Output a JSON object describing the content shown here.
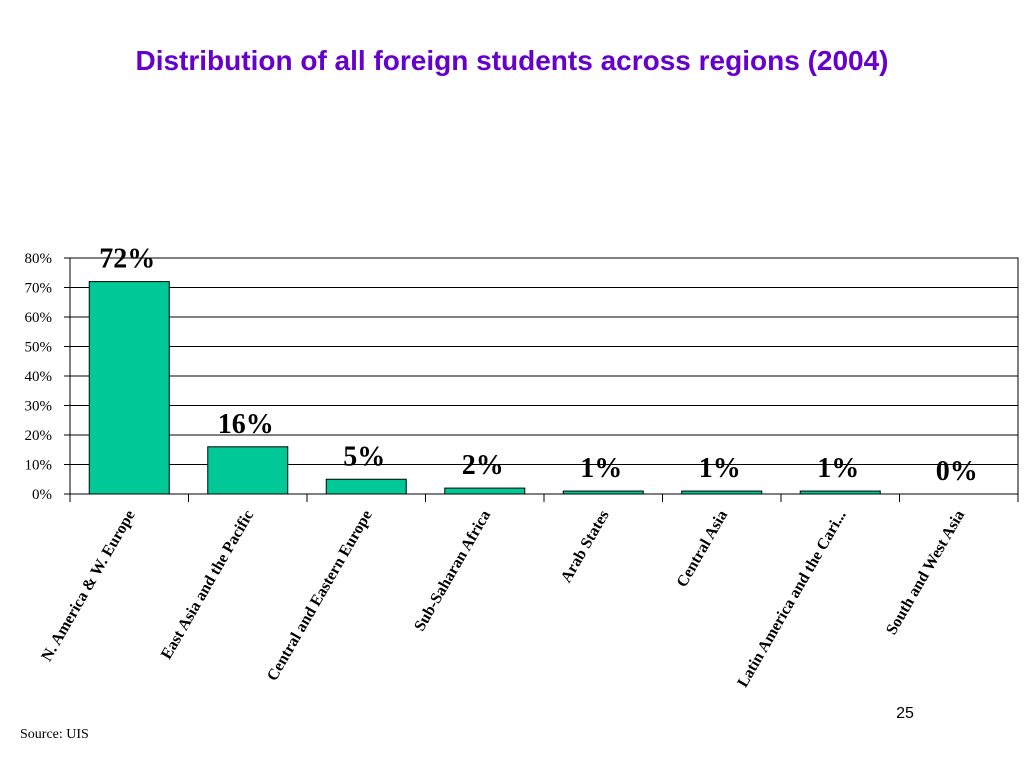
{
  "chart_data": {
    "type": "bar",
    "title": "Distribution of all foreign students across regions (2004)",
    "categories": [
      "N. America & W. Europe",
      "East Asia and the Pacific",
      "Central and Eastern Europe",
      "Sub-Saharan Africa",
      "Arab States",
      "Central Asia",
      "Latin America and the Cari...",
      "South and West Asia"
    ],
    "values": [
      72,
      16,
      5,
      2,
      1,
      1,
      1,
      0
    ],
    "value_labels": [
      "72%",
      "16%",
      "5%",
      "2%",
      "1%",
      "1%",
      "1%",
      "0%"
    ],
    "color": "#00c896",
    "ylim": [
      0,
      80
    ],
    "yticks": [
      {
        "value": 0,
        "label": "0%"
      },
      {
        "value": 10,
        "label": "10%"
      },
      {
        "value": 20,
        "label": "20%"
      },
      {
        "value": 30,
        "label": "30%"
      },
      {
        "value": 40,
        "label": "40%"
      },
      {
        "value": 50,
        "label": "50%"
      },
      {
        "value": 60,
        "label": "60%"
      },
      {
        "value": 70,
        "label": "70%"
      },
      {
        "value": 80,
        "label": "80%"
      }
    ],
    "grid": true
  },
  "source": "Source: UIS",
  "page_number": "25"
}
